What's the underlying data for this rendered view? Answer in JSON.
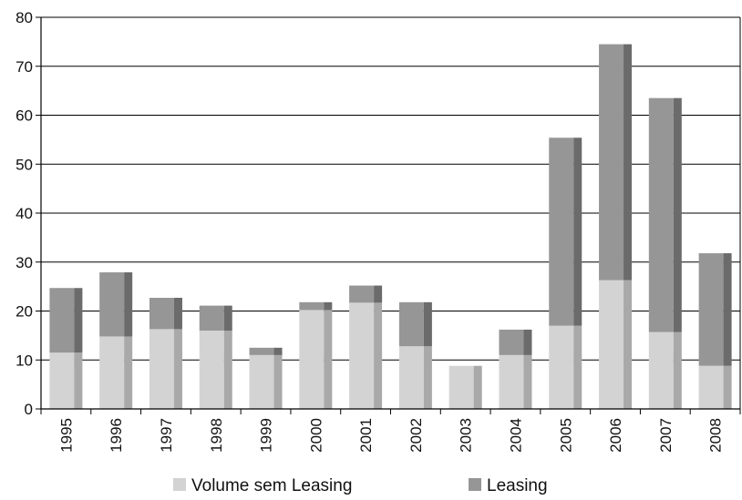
{
  "chart_data": {
    "type": "bar",
    "stacked": true,
    "title": "",
    "xlabel": "",
    "ylabel": "",
    "ylim": [
      0,
      80
    ],
    "yticks": [
      0,
      10,
      20,
      30,
      40,
      50,
      60,
      70,
      80
    ],
    "grid": true,
    "legend_position": "bottom",
    "categories": [
      "1995",
      "1996",
      "1997",
      "1998",
      "1999",
      "2000",
      "2001",
      "2002",
      "2003",
      "2004",
      "2005",
      "2006",
      "2007",
      "2008"
    ],
    "series": [
      {
        "name": "Volume sem Leasing",
        "color": "#d3d3d3",
        "shade": "#a9a9a9",
        "values": [
          11.5,
          14.8,
          16.3,
          16.0,
          11.0,
          20.2,
          21.7,
          12.8,
          8.8,
          11.0,
          17.0,
          26.3,
          15.7,
          8.8
        ]
      },
      {
        "name": "Leasing",
        "color": "#969696",
        "shade": "#6b6b6b",
        "values": [
          13.2,
          13.1,
          6.4,
          5.1,
          1.5,
          1.6,
          3.5,
          9.0,
          0.0,
          5.2,
          38.4,
          48.2,
          47.8,
          23.0
        ]
      }
    ]
  }
}
